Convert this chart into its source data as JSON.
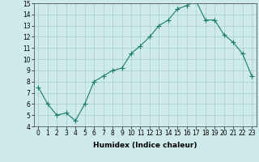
{
  "x": [
    0,
    1,
    2,
    3,
    4,
    5,
    6,
    7,
    8,
    9,
    10,
    11,
    12,
    13,
    14,
    15,
    16,
    17,
    18,
    19,
    20,
    21,
    22,
    23
  ],
  "y": [
    7.5,
    6.0,
    5.0,
    5.2,
    4.5,
    6.0,
    8.0,
    8.5,
    9.0,
    9.2,
    10.5,
    11.2,
    12.0,
    13.0,
    13.5,
    14.5,
    14.8,
    15.2,
    13.5,
    13.5,
    12.2,
    11.5,
    10.5,
    8.5
  ],
  "line_color": "#1a7a6e",
  "marker": "+",
  "marker_size": 4,
  "bg_color": "#ceeaea",
  "grid_color": "#aacccc",
  "xlabel": "Humidex (Indice chaleur)",
  "xlim": [
    -0.5,
    23.5
  ],
  "ylim": [
    4,
    15
  ],
  "yticks": [
    4,
    5,
    6,
    7,
    8,
    9,
    10,
    11,
    12,
    13,
    14,
    15
  ],
  "xticks": [
    0,
    1,
    2,
    3,
    4,
    5,
    6,
    7,
    8,
    9,
    10,
    11,
    12,
    13,
    14,
    15,
    16,
    17,
    18,
    19,
    20,
    21,
    22,
    23
  ],
  "label_fontsize": 6.5,
  "tick_fontsize": 5.5
}
